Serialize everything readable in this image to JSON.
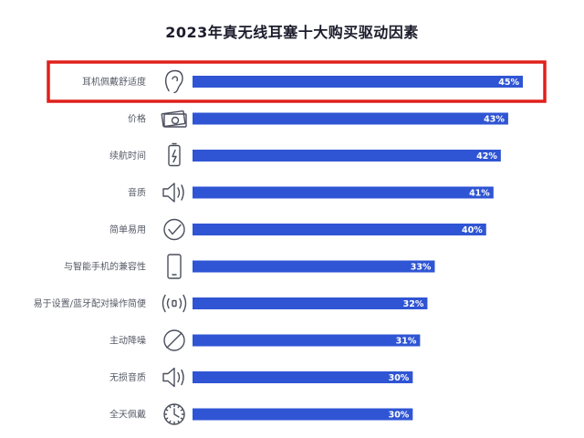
{
  "chart_data": {
    "type": "bar",
    "orientation": "horizontal",
    "title": "2023年真无线耳塞十大购买驱动因素",
    "categories": [
      "耳机佩戴舒适度",
      "价格",
      "续航时间",
      "音质",
      "简单易用",
      "与智能手机的兼容性",
      "易于设置/蓝牙配对操作简便",
      "主动降噪",
      "无损音质",
      "全天佩戴"
    ],
    "values": [
      45,
      43,
      42,
      41,
      40,
      33,
      32,
      31,
      30,
      30
    ],
    "value_labels": [
      "45%",
      "43%",
      "42%",
      "41%",
      "40%",
      "33%",
      "32%",
      "31%",
      "30%",
      "30%"
    ],
    "icons": [
      "ear-icon",
      "money-icon",
      "battery-icon",
      "speaker-icon",
      "checkmark-icon",
      "smartphone-icon",
      "wireless-pairing-icon",
      "noise-cancel-icon",
      "speaker-icon",
      "clock-icon"
    ],
    "xlim": [
      0,
      45
    ],
    "bar_color": "#2f55d4",
    "highlight": {
      "category_index": 0,
      "color": "#e0201c"
    },
    "grid": false,
    "legend": "none"
  }
}
